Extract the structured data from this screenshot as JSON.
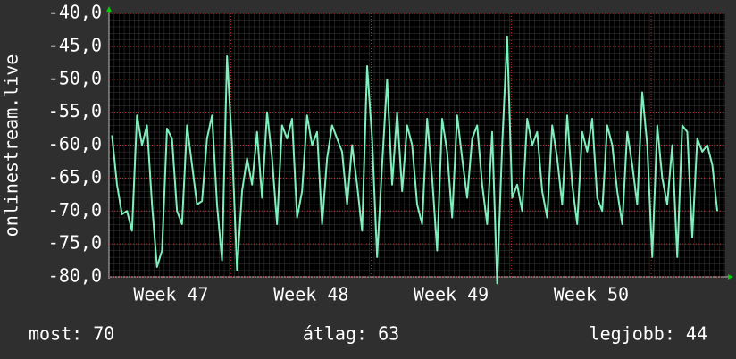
{
  "chart_data": {
    "type": "line",
    "y_label": "onlinestream.live",
    "xlim": [
      0,
      30.8
    ],
    "ylim": [
      -80,
      -40
    ],
    "yticks": [
      {
        "value": -40,
        "label": "-40,0"
      },
      {
        "value": -45,
        "label": "-45,0"
      },
      {
        "value": -50,
        "label": "-50,0"
      },
      {
        "value": -55,
        "label": "-55,0"
      },
      {
        "value": -60,
        "label": "-60,0"
      },
      {
        "value": -65,
        "label": "-65,0"
      },
      {
        "value": -70,
        "label": "-70,0"
      },
      {
        "value": -75,
        "label": "-75,0"
      },
      {
        "value": -80,
        "label": "-80,0"
      }
    ],
    "xticks": [
      {
        "value": 3.1,
        "label": "Week 47"
      },
      {
        "value": 10.1,
        "label": "Week 48"
      },
      {
        "value": 17.1,
        "label": "Week 49"
      },
      {
        "value": 24.1,
        "label": "Week 50"
      }
    ],
    "xgrid_major": [
      6.1,
      13.1,
      20.1,
      27.1
    ],
    "grid": true,
    "series": [
      {
        "color": "#7ff0bd",
        "x0": 0.15,
        "step": 0.25,
        "values": [
          -58.5,
          -66,
          -70.5,
          -70,
          -73,
          -55.5,
          -60,
          -57,
          -69,
          -78.5,
          -76,
          -57.5,
          -59,
          -70,
          -72,
          -57,
          -63,
          -69,
          -68.5,
          -59,
          -55.5,
          -69,
          -77.5,
          -46.5,
          -60,
          -79,
          -67,
          -62,
          -66,
          -58,
          -68,
          -55,
          -62,
          -72,
          -57,
          -59,
          -56,
          -71,
          -67,
          -55.5,
          -60,
          -58,
          -72,
          -62,
          -57,
          -59,
          -61,
          -69,
          -60,
          -66,
          -73,
          -48,
          -59,
          -77,
          -63,
          -50,
          -66,
          -55,
          -67,
          -57,
          -60,
          -69,
          -72,
          -56,
          -65,
          -76,
          -56,
          -61,
          -71,
          -55.5,
          -62,
          -68,
          -59,
          -57,
          -66,
          -72,
          -58,
          -81,
          -60,
          -43.5,
          -68,
          -66,
          -70,
          -56,
          -60,
          -58,
          -67,
          -71,
          -57,
          -62,
          -69,
          -55.5,
          -66,
          -72,
          -58,
          -61,
          -56,
          -68,
          -70,
          -57,
          -60,
          -67,
          -72,
          -58,
          -63,
          -69,
          -52,
          -60,
          -77,
          -57,
          -65,
          -69,
          -60,
          -77,
          -57,
          -58,
          -74,
          -59,
          -61,
          -60,
          -63,
          -70
        ]
      }
    ]
  },
  "footer": {
    "current": "most: 70",
    "average": "átlag: 63",
    "best": "legjobb: 44"
  }
}
